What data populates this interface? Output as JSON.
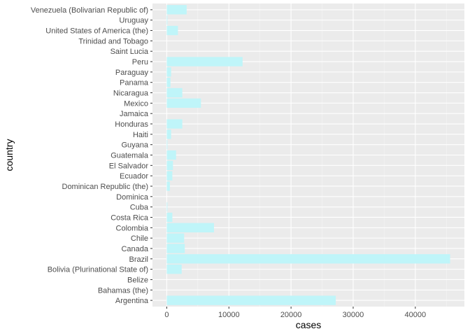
{
  "chart_data": {
    "type": "bar",
    "orientation": "horizontal",
    "xlabel": "cases",
    "ylabel": "country",
    "xlim": [
      -2300,
      47900
    ],
    "x_ticks": [
      0,
      10000,
      20000,
      30000,
      40000
    ],
    "grid": true,
    "colors": {
      "panel": "#ebebeb",
      "grid_major": "#ffffff",
      "grid_minor": "#f5f5f5",
      "bar": "#bff5f9"
    },
    "categories": [
      "Argentina",
      "Bahamas (the)",
      "Belize",
      "Bolivia (Plurinational State of)",
      "Brazil",
      "Canada",
      "Chile",
      "Colombia",
      "Costa Rica",
      "Cuba",
      "Dominica",
      "Dominican Republic (the)",
      "Ecuador",
      "El Salvador",
      "Guatemala",
      "Guyana",
      "Haiti",
      "Honduras",
      "Jamaica",
      "Mexico",
      "Nicaragua",
      "Panama",
      "Paraguay",
      "Peru",
      "Saint Lucia",
      "Trinidad and Tobago",
      "United States of America (the)",
      "Uruguay",
      "Venezuela (Bolivarian Republic of)"
    ],
    "values": [
      27200,
      0,
      0,
      2400,
      45600,
      2900,
      2800,
      7600,
      900,
      100,
      0,
      500,
      900,
      1000,
      1500,
      100,
      700,
      2500,
      0,
      5500,
      2500,
      600,
      700,
      12200,
      0,
      0,
      1800,
      100,
      3200
    ]
  }
}
